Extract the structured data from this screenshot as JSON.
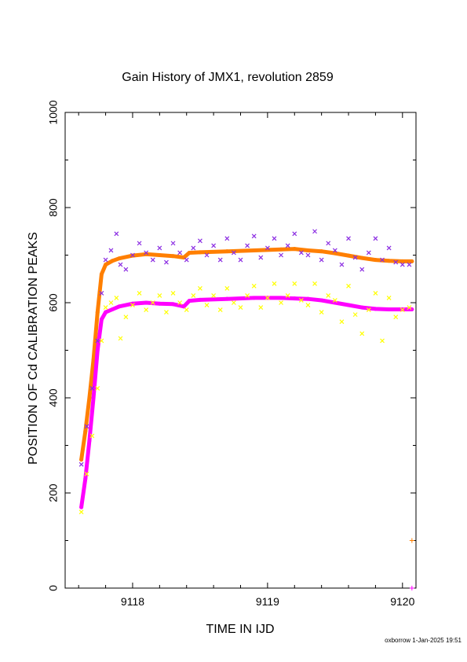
{
  "chart_data": {
    "type": "scatter",
    "title": "Gain History of JMX1, revolution 2859",
    "xlabel": "TIME IN IJD",
    "ylabel": "POSITION OF Cd CALIBRATION PEAKS",
    "xlim": [
      9117.5,
      9120.1
    ],
    "ylim": [
      0,
      1000
    ],
    "x_ticks": [
      9118,
      9119,
      9120
    ],
    "y_ticks": [
      0,
      200,
      400,
      600,
      800,
      1000
    ],
    "grid": false,
    "legend": "none",
    "series": [
      {
        "color": "#ff7f00",
        "marker": "line",
        "x": [
          9117.62,
          9117.65,
          9117.68,
          9117.71,
          9117.74,
          9117.77,
          9117.8,
          9117.85,
          9117.9,
          9118.0,
          9118.1,
          9118.2,
          9118.3,
          9118.38,
          9118.42,
          9118.5,
          9118.7,
          9118.9,
          9119.1,
          9119.2,
          9119.3,
          9119.4,
          9119.5,
          9119.6,
          9119.7,
          9119.8,
          9119.9,
          9120.0,
          9120.07
        ],
        "y": [
          270,
          330,
          400,
          480,
          580,
          660,
          680,
          688,
          693,
          699,
          702,
          700,
          698,
          695,
          705,
          706,
          708,
          710,
          712,
          713,
          710,
          708,
          704,
          699,
          694,
          690,
          688,
          687,
          687
        ]
      },
      {
        "color": "#ff00ff",
        "marker": "line",
        "x": [
          9117.62,
          9117.65,
          9117.68,
          9117.71,
          9117.74,
          9117.77,
          9117.8,
          9117.85,
          9117.9,
          9118.0,
          9118.1,
          9118.2,
          9118.3,
          9118.38,
          9118.42,
          9118.5,
          9118.7,
          9118.9,
          9119.1,
          9119.2,
          9119.3,
          9119.4,
          9119.5,
          9119.6,
          9119.7,
          9119.8,
          9119.9,
          9120.0,
          9120.07
        ],
        "y": [
          170,
          230,
          310,
          400,
          500,
          565,
          580,
          586,
          592,
          598,
          600,
          598,
          597,
          592,
          604,
          606,
          608,
          610,
          610,
          609,
          608,
          605,
          600,
          595,
          590,
          587,
          586,
          586,
          586
        ]
      },
      {
        "color": "#8a2be2",
        "marker": "x",
        "x": [
          9117.62,
          9117.66,
          9117.7,
          9117.74,
          9117.77,
          9117.8,
          9117.84,
          9117.88,
          9117.91,
          9117.95,
          9118.0,
          9118.05,
          9118.1,
          9118.15,
          9118.2,
          9118.25,
          9118.3,
          9118.35,
          9118.4,
          9118.45,
          9118.5,
          9118.55,
          9118.6,
          9118.65,
          9118.7,
          9118.75,
          9118.8,
          9118.85,
          9118.9,
          9118.95,
          9119.0,
          9119.05,
          9119.1,
          9119.15,
          9119.2,
          9119.25,
          9119.3,
          9119.35,
          9119.4,
          9119.45,
          9119.5,
          9119.55,
          9119.6,
          9119.65,
          9119.7,
          9119.75,
          9119.8,
          9119.85,
          9119.9,
          9119.95,
          9120.0,
          9120.05
        ],
        "y": [
          260,
          340,
          420,
          520,
          620,
          690,
          710,
          745,
          680,
          670,
          700,
          725,
          705,
          690,
          715,
          685,
          725,
          705,
          690,
          715,
          730,
          700,
          720,
          690,
          735,
          705,
          690,
          720,
          740,
          695,
          715,
          735,
          700,
          720,
          745,
          705,
          700,
          750,
          690,
          725,
          710,
          680,
          735,
          695,
          670,
          705,
          735,
          690,
          715,
          685,
          680,
          680
        ]
      },
      {
        "color": "#ffff00",
        "marker": "x",
        "x": [
          9117.62,
          9117.66,
          9117.7,
          9117.74,
          9117.77,
          9117.8,
          9117.84,
          9117.88,
          9117.91,
          9117.95,
          9118.0,
          9118.05,
          9118.1,
          9118.15,
          9118.2,
          9118.25,
          9118.3,
          9118.35,
          9118.4,
          9118.45,
          9118.5,
          9118.55,
          9118.6,
          9118.65,
          9118.7,
          9118.75,
          9118.8,
          9118.85,
          9118.9,
          9118.95,
          9119.0,
          9119.05,
          9119.1,
          9119.15,
          9119.2,
          9119.25,
          9119.3,
          9119.35,
          9119.4,
          9119.45,
          9119.5,
          9119.55,
          9119.6,
          9119.65,
          9119.7,
          9119.75,
          9119.8,
          9119.85,
          9119.9,
          9119.95,
          9120.0,
          9120.05
        ],
        "y": [
          160,
          240,
          320,
          420,
          520,
          590,
          600,
          610,
          525,
          570,
          595,
          620,
          585,
          600,
          615,
          580,
          620,
          600,
          585,
          615,
          630,
          595,
          615,
          585,
          630,
          600,
          590,
          615,
          635,
          590,
          610,
          640,
          600,
          615,
          640,
          605,
          595,
          640,
          580,
          615,
          605,
          560,
          635,
          575,
          535,
          585,
          620,
          520,
          610,
          570,
          585,
          590
        ]
      },
      {
        "color": "#ff7f00",
        "marker": "+",
        "x": [
          9120.07
        ],
        "y": [
          100
        ]
      },
      {
        "color": "#ff00ff",
        "marker": "+",
        "x": [
          9120.07
        ],
        "y": [
          0
        ]
      }
    ]
  },
  "footer": "oxborrow  1-Jan-2025 19:51"
}
